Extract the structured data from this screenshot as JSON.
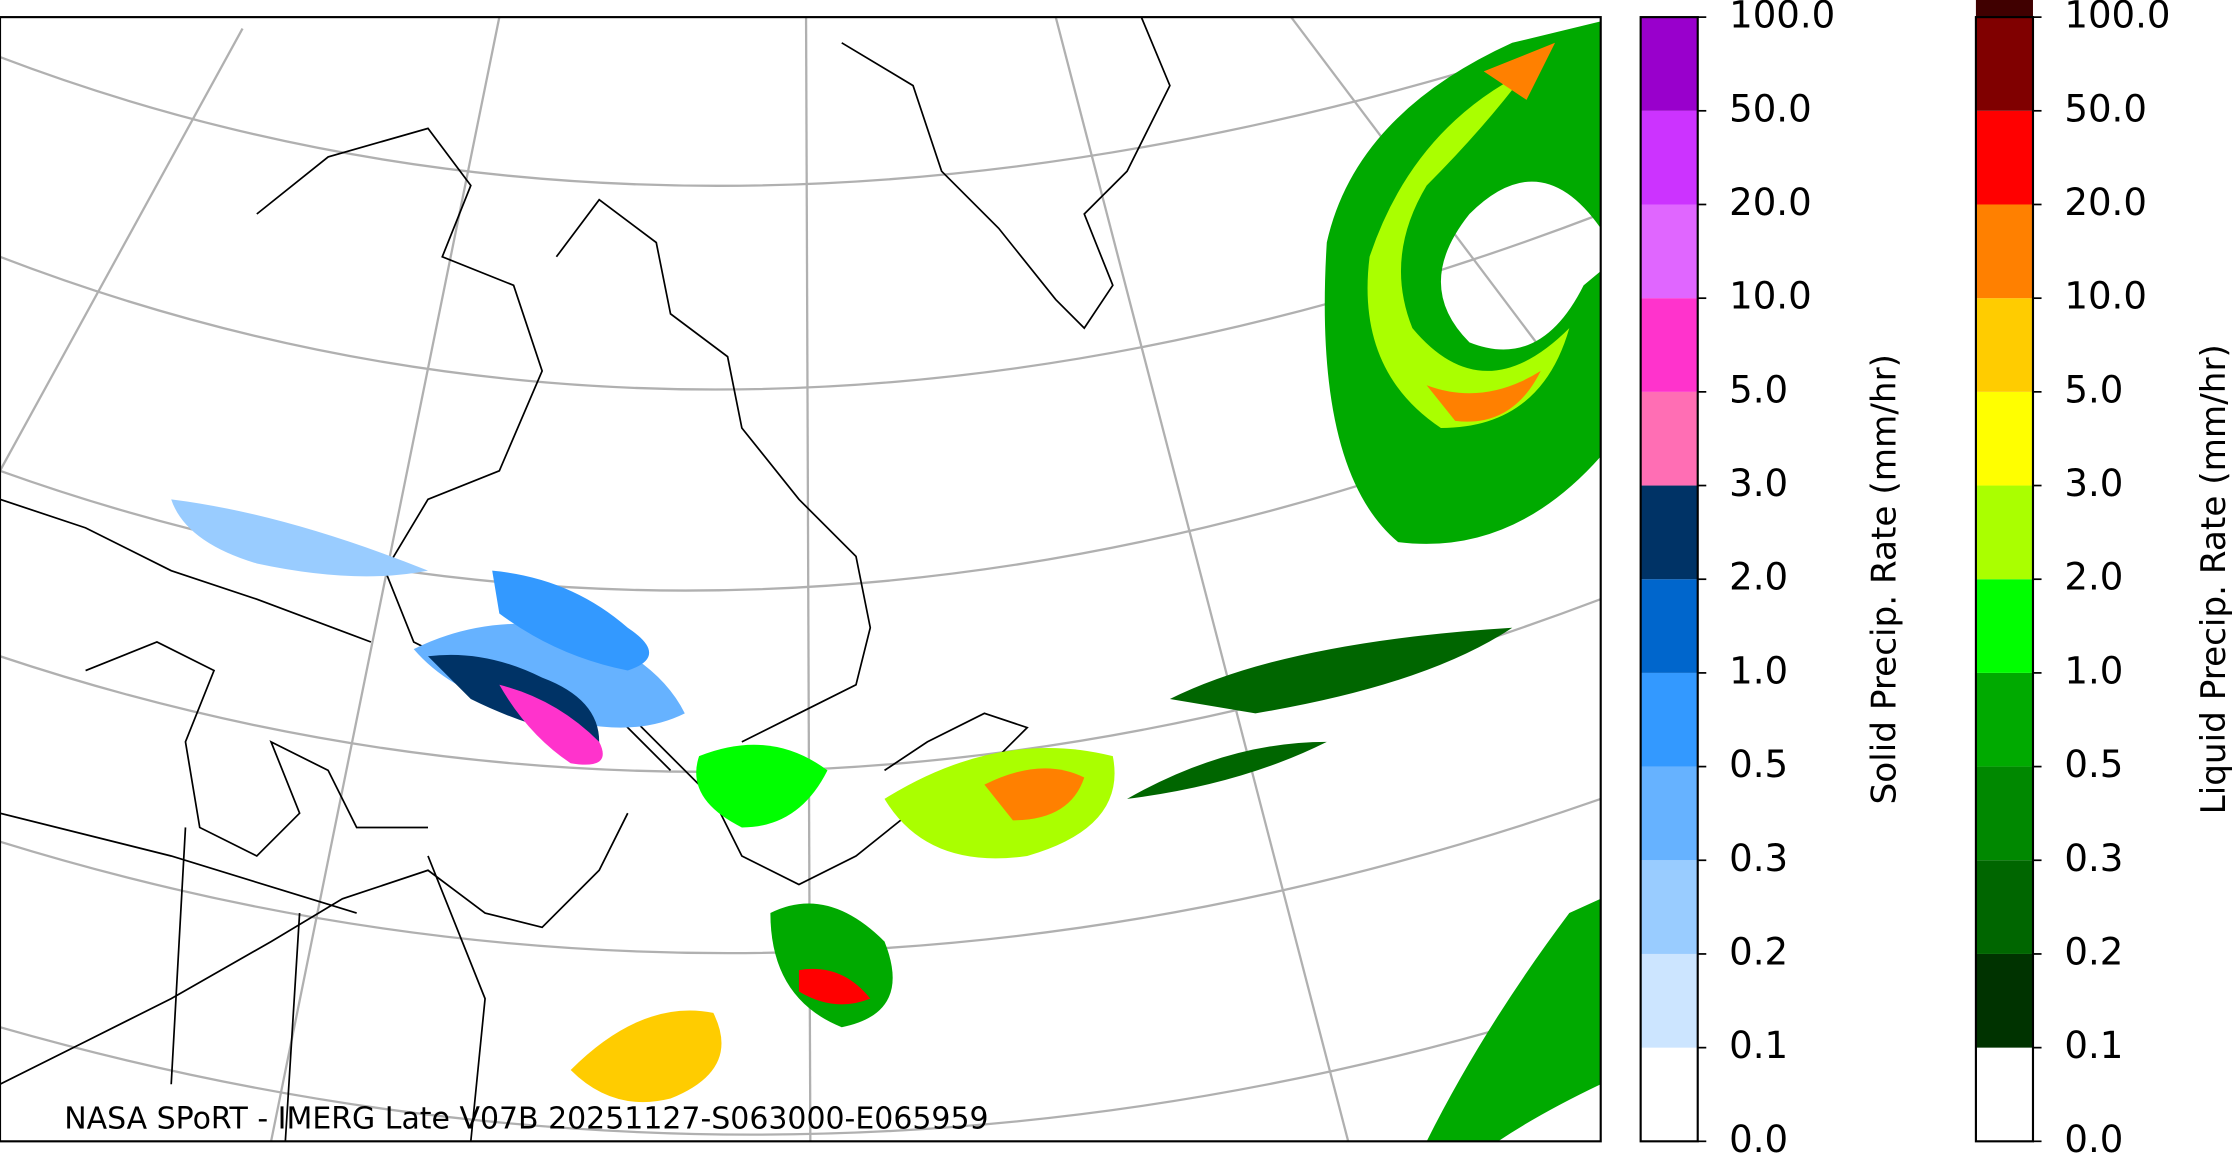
{
  "caption": "NASA SPoRT - IMERG Late V07B 20251127-S063000-E065959",
  "colorbars": [
    {
      "label": "Solid Precip. Rate (mm/hr)",
      "ticks": [
        {
          "value": 0,
          "label": "0.0"
        },
        {
          "value": 0.1,
          "label": "0.1"
        },
        {
          "value": 0.2,
          "label": "0.2"
        },
        {
          "value": 0.3,
          "label": "0.3"
        },
        {
          "value": 0.5,
          "label": "0.5"
        },
        {
          "value": 1,
          "label": "1.0"
        },
        {
          "value": 2,
          "label": "2.0"
        },
        {
          "value": 3,
          "label": "3.0"
        },
        {
          "value": 5,
          "label": "5.0"
        },
        {
          "value": 10,
          "label": "10.0"
        },
        {
          "value": 20,
          "label": "20.0"
        },
        {
          "value": 50,
          "label": "50.0"
        },
        {
          "value": 100,
          "label": "100.0"
        }
      ],
      "colors": [
        "#ffffff",
        "#cce5ff",
        "#99ccff",
        "#66b2ff",
        "#3399ff",
        "#0066cc",
        "#003366",
        "#ff6eb4",
        "#ff33cc",
        "#e066ff",
        "#cc33ff",
        "#9900cc"
      ]
    },
    {
      "label": "Liquid Precip. Rate (mm/hr)",
      "ticks": [
        {
          "value": 0,
          "label": "0.0"
        },
        {
          "value": 0.1,
          "label": "0.1"
        },
        {
          "value": 0.2,
          "label": "0.2"
        },
        {
          "value": 0.3,
          "label": "0.3"
        },
        {
          "value": 0.5,
          "label": "0.5"
        },
        {
          "value": 1,
          "label": "1.0"
        },
        {
          "value": 2,
          "label": "2.0"
        },
        {
          "value": 3,
          "label": "3.0"
        },
        {
          "value": 5,
          "label": "5.0"
        },
        {
          "value": 10,
          "label": "10.0"
        },
        {
          "value": 20,
          "label": "20.0"
        },
        {
          "value": 50,
          "label": "50.0"
        },
        {
          "value": 100,
          "label": "100.0"
        }
      ],
      "colors": [
        "#ffffff",
        "#003300",
        "#006600",
        "#008800",
        "#00aa00",
        "#00ff00",
        "#aaff00",
        "#ffff00",
        "#ffcc00",
        "#ff8000",
        "#ff0000",
        "#800000",
        "#400000"
      ]
    }
  ]
}
